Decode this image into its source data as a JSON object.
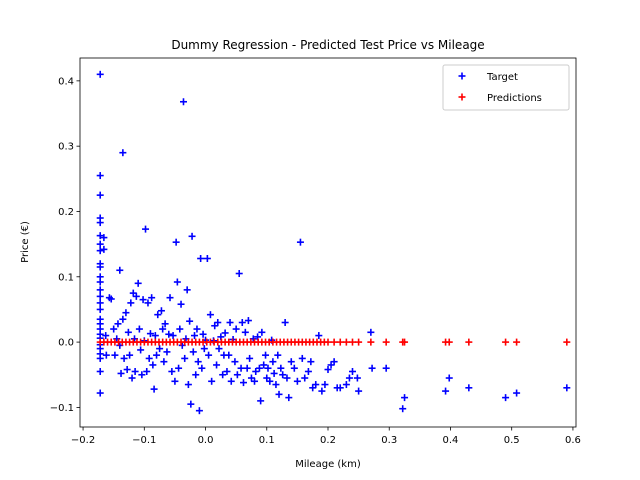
{
  "chart_data": {
    "type": "scatter",
    "title": "Dummy Regression - Predicted Test Price vs Mileage",
    "xlabel": "Mileage (km)",
    "ylabel": "Price (€)",
    "xlim": [
      -0.205,
      0.605
    ],
    "ylim": [
      -0.13,
      0.435
    ],
    "xticks": [
      -0.2,
      -0.1,
      0.0,
      0.1,
      0.2,
      0.3,
      0.4,
      0.5,
      0.6
    ],
    "xtick_labels": [
      "−0.2",
      "−0.1",
      "0.0",
      "0.1",
      "0.2",
      "0.3",
      "0.4",
      "0.5",
      "0.6"
    ],
    "yticks": [
      -0.1,
      0.0,
      0.1,
      0.2,
      0.3,
      0.4
    ],
    "ytick_labels": [
      "−0.1",
      "0.0",
      "0.1",
      "0.2",
      "0.3",
      "0.4"
    ],
    "grid": false,
    "legend": {
      "placement": "top-right",
      "entries": [
        "Target",
        "Predictions"
      ]
    },
    "series": [
      {
        "name": "Target",
        "color": "#0000ff",
        "marker": "plus",
        "points": [
          [
            -0.172,
            0.41
          ],
          [
            -0.172,
            0.255
          ],
          [
            -0.172,
            0.225
          ],
          [
            -0.172,
            0.19
          ],
          [
            -0.172,
            0.183
          ],
          [
            -0.172,
            0.163
          ],
          [
            -0.172,
            0.15
          ],
          [
            -0.172,
            0.14
          ],
          [
            -0.172,
            0.12
          ],
          [
            -0.172,
            0.115
          ],
          [
            -0.172,
            0.1
          ],
          [
            -0.172,
            0.092
          ],
          [
            -0.172,
            0.08
          ],
          [
            -0.172,
            0.07
          ],
          [
            -0.172,
            0.06
          ],
          [
            -0.172,
            0.05
          ],
          [
            -0.172,
            0.035
          ],
          [
            -0.172,
            0.028
          ],
          [
            -0.172,
            0.02
          ],
          [
            -0.172,
            0.012
          ],
          [
            -0.172,
            0.006
          ],
          [
            -0.172,
            -0.004
          ],
          [
            -0.172,
            -0.01
          ],
          [
            -0.172,
            -0.018
          ],
          [
            -0.172,
            -0.025
          ],
          [
            -0.172,
            -0.045
          ],
          [
            -0.172,
            -0.078
          ],
          [
            -0.166,
            0.16
          ],
          [
            -0.166,
            0.142
          ],
          [
            -0.163,
            0.01
          ],
          [
            -0.162,
            -0.02
          ],
          [
            -0.157,
            0.068
          ],
          [
            -0.154,
            0.066
          ],
          [
            -0.15,
            0.02
          ],
          [
            -0.148,
            -0.02
          ],
          [
            -0.145,
            0.005
          ],
          [
            -0.143,
            0.028
          ],
          [
            -0.14,
            0.11
          ],
          [
            -0.14,
            -0.005
          ],
          [
            -0.138,
            -0.048
          ],
          [
            -0.135,
            0.29
          ],
          [
            -0.135,
            0.035
          ],
          [
            -0.133,
            -0.025
          ],
          [
            -0.13,
            0.045
          ],
          [
            -0.128,
            -0.042
          ],
          [
            -0.126,
            0.015
          ],
          [
            -0.124,
            -0.02
          ],
          [
            -0.122,
            0.06
          ],
          [
            -0.12,
            -0.055
          ],
          [
            -0.118,
            0.075
          ],
          [
            -0.116,
            0.005
          ],
          [
            -0.115,
            -0.045
          ],
          [
            -0.113,
            0.07
          ],
          [
            -0.11,
            0.09
          ],
          [
            -0.108,
            0.02
          ],
          [
            -0.106,
            -0.012
          ],
          [
            -0.104,
            -0.05
          ],
          [
            -0.102,
            0.065
          ],
          [
            -0.1,
            0.002
          ],
          [
            -0.098,
            0.173
          ],
          [
            -0.096,
            -0.045
          ],
          [
            -0.094,
            0.06
          ],
          [
            -0.092,
            -0.025
          ],
          [
            -0.09,
            0.013
          ],
          [
            -0.088,
            0.068
          ],
          [
            -0.086,
            -0.035
          ],
          [
            -0.084,
            -0.072
          ],
          [
            -0.082,
            0.01
          ],
          [
            -0.08,
            -0.02
          ],
          [
            -0.078,
            0.042
          ],
          [
            -0.075,
            -0.01
          ],
          [
            -0.072,
            0.048
          ],
          [
            -0.07,
            0.02
          ],
          [
            -0.068,
            -0.03
          ],
          [
            -0.066,
            0.028
          ],
          [
            -0.063,
            -0.015
          ],
          [
            -0.06,
            0.012
          ],
          [
            -0.058,
            0.068
          ],
          [
            -0.055,
            -0.045
          ],
          [
            -0.053,
            0.01
          ],
          [
            -0.05,
            -0.06
          ],
          [
            -0.048,
            0.153
          ],
          [
            -0.046,
            0.092
          ],
          [
            -0.044,
            -0.04
          ],
          [
            -0.042,
            0.02
          ],
          [
            -0.04,
            0.058
          ],
          [
            -0.038,
            -0.005
          ],
          [
            -0.036,
            0.368
          ],
          [
            -0.034,
            -0.025
          ],
          [
            -0.032,
            0.005
          ],
          [
            -0.03,
            0.08
          ],
          [
            -0.028,
            -0.065
          ],
          [
            -0.026,
            0.032
          ],
          [
            -0.024,
            -0.095
          ],
          [
            -0.022,
            0.162
          ],
          [
            -0.02,
            -0.015
          ],
          [
            -0.018,
            0.01
          ],
          [
            -0.016,
            -0.05
          ],
          [
            -0.014,
            0.02
          ],
          [
            -0.012,
            -0.03
          ],
          [
            -0.01,
            -0.105
          ],
          [
            -0.008,
            0.128
          ],
          [
            -0.006,
            -0.04
          ],
          [
            -0.004,
            0.012
          ],
          [
            -0.002,
            -0.01
          ],
          [
            0.0,
            0.003
          ],
          [
            0.003,
            0.128
          ],
          [
            0.005,
            -0.02
          ],
          [
            0.008,
            0.042
          ],
          [
            0.01,
            -0.06
          ],
          [
            0.013,
            0.002
          ],
          [
            0.015,
            0.025
          ],
          [
            0.018,
            -0.035
          ],
          [
            0.02,
            0.03
          ],
          [
            0.022,
            -0.01
          ],
          [
            0.025,
            0.008
          ],
          [
            0.028,
            -0.05
          ],
          [
            0.03,
            -0.02
          ],
          [
            0.032,
            0.014
          ],
          [
            0.035,
            -0.045
          ],
          [
            0.038,
            -0.02
          ],
          [
            0.04,
            0.03
          ],
          [
            0.042,
            -0.06
          ],
          [
            0.045,
            0.004
          ],
          [
            0.048,
            -0.03
          ],
          [
            0.05,
            0.02
          ],
          [
            0.052,
            -0.05
          ],
          [
            0.055,
            0.105
          ],
          [
            0.058,
            -0.04
          ],
          [
            0.06,
            0.03
          ],
          [
            0.062,
            -0.062
          ],
          [
            0.065,
            0.015
          ],
          [
            0.068,
            -0.04
          ],
          [
            0.07,
            0.033
          ],
          [
            0.072,
            -0.025
          ],
          [
            0.075,
            -0.055
          ],
          [
            0.078,
            0.005
          ],
          [
            0.08,
            -0.06
          ],
          [
            0.082,
            -0.045
          ],
          [
            0.085,
            0.008
          ],
          [
            0.088,
            -0.04
          ],
          [
            0.09,
            -0.09
          ],
          [
            0.092,
            0.015
          ],
          [
            0.095,
            -0.035
          ],
          [
            0.098,
            -0.02
          ],
          [
            0.1,
            -0.055
          ],
          [
            0.102,
            -0.04
          ],
          [
            0.105,
            -0.06
          ],
          [
            0.108,
            0.003
          ],
          [
            0.11,
            -0.03
          ],
          [
            0.112,
            -0.048
          ],
          [
            0.115,
            -0.065
          ],
          [
            0.118,
            -0.02
          ],
          [
            0.12,
            -0.08
          ],
          [
            0.123,
            -0.04
          ],
          [
            0.126,
            -0.05
          ],
          [
            0.13,
            0.03
          ],
          [
            0.133,
            -0.055
          ],
          [
            0.136,
            -0.085
          ],
          [
            0.14,
            -0.03
          ],
          [
            0.145,
            -0.04
          ],
          [
            0.15,
            -0.06
          ],
          [
            0.155,
            0.153
          ],
          [
            0.158,
            -0.025
          ],
          [
            0.162,
            -0.055
          ],
          [
            0.168,
            -0.045
          ],
          [
            0.172,
            -0.03
          ],
          [
            0.175,
            -0.07
          ],
          [
            0.18,
            -0.065
          ],
          [
            0.185,
            0.01
          ],
          [
            0.19,
            -0.075
          ],
          [
            0.195,
            -0.065
          ],
          [
            0.2,
            -0.042
          ],
          [
            0.205,
            -0.035
          ],
          [
            0.21,
            -0.03
          ],
          [
            0.215,
            -0.07
          ],
          [
            0.22,
            -0.07
          ],
          [
            0.23,
            -0.065
          ],
          [
            0.235,
            -0.055
          ],
          [
            0.24,
            -0.045
          ],
          [
            0.248,
            -0.055
          ],
          [
            0.25,
            -0.075
          ],
          [
            0.27,
            0.015
          ],
          [
            0.272,
            -0.04
          ],
          [
            0.295,
            -0.04
          ],
          [
            0.322,
            -0.102
          ],
          [
            0.325,
            -0.085
          ],
          [
            0.392,
            -0.075
          ],
          [
            0.398,
            -0.055
          ],
          [
            0.43,
            -0.07
          ],
          [
            0.49,
            -0.085
          ],
          [
            0.508,
            -0.078
          ],
          [
            0.59,
            -0.07
          ]
        ]
      },
      {
        "name": "Predictions",
        "color": "#ff0000",
        "marker": "plus",
        "y_value": 0.0,
        "x_values": [
          -0.172,
          -0.166,
          -0.16,
          -0.154,
          -0.148,
          -0.142,
          -0.136,
          -0.13,
          -0.124,
          -0.118,
          -0.112,
          -0.106,
          -0.1,
          -0.094,
          -0.088,
          -0.082,
          -0.076,
          -0.07,
          -0.064,
          -0.058,
          -0.052,
          -0.046,
          -0.04,
          -0.034,
          -0.028,
          -0.022,
          -0.016,
          -0.01,
          -0.004,
          0.002,
          0.008,
          0.014,
          0.02,
          0.026,
          0.032,
          0.038,
          0.044,
          0.05,
          0.056,
          0.062,
          0.068,
          0.074,
          0.08,
          0.086,
          0.092,
          0.098,
          0.104,
          0.11,
          0.116,
          0.122,
          0.128,
          0.134,
          0.14,
          0.146,
          0.152,
          0.158,
          0.164,
          0.17,
          0.176,
          0.182,
          0.188,
          0.194,
          0.2,
          0.21,
          0.22,
          0.23,
          0.24,
          0.25,
          0.27,
          0.295,
          0.322,
          0.325,
          0.392,
          0.398,
          0.43,
          0.49,
          0.508,
          0.59
        ]
      }
    ]
  }
}
